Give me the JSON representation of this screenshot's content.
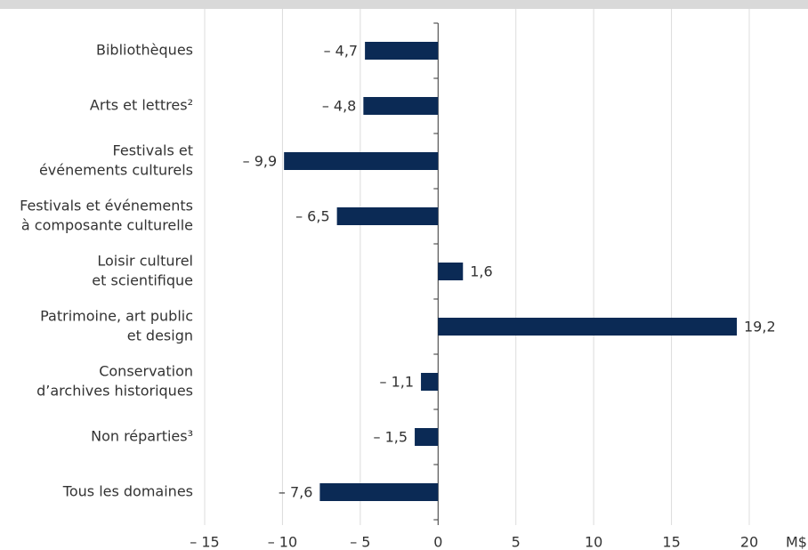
{
  "chart_data": {
    "type": "hbar",
    "categories": [
      [
        "Bibliothèques"
      ],
      [
        "Arts et lettres²"
      ],
      [
        "Festivals et",
        "événements culturels"
      ],
      [
        "Festivals et événements",
        "à composante culturelle"
      ],
      [
        "Loisir culturel",
        "et scientifique"
      ],
      [
        "Patrimoine, art public",
        "et design"
      ],
      [
        "Conservation",
        "d’archives historiques"
      ],
      [
        "Non réparties³"
      ],
      [
        "Tous les domaines"
      ]
    ],
    "values": [
      -4.7,
      -4.8,
      -9.9,
      -6.5,
      1.6,
      19.2,
      -1.1,
      -1.5,
      -7.6
    ],
    "value_labels": [
      "– 4,7",
      "– 4,8",
      "– 9,9",
      "– 6,5",
      "1,6",
      "19,2",
      "– 1,1",
      "– 1,5",
      "– 7,6"
    ],
    "color": "#0b2a55",
    "xlabel": "M$",
    "xlim": [
      -15,
      20
    ],
    "xticks": [
      {
        "value": -15,
        "label": "– 15"
      },
      {
        "value": -10,
        "label": "– 10"
      },
      {
        "value": -5,
        "label": "– 5"
      },
      0,
      5,
      10,
      15,
      20
    ],
    "grid": true
  }
}
